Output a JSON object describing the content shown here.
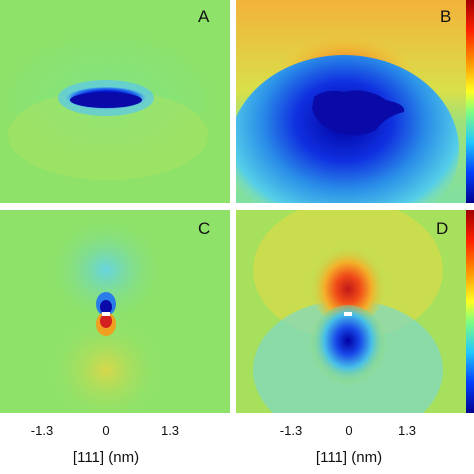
{
  "panels": [
    {
      "label": "A",
      "colors": {
        "background": "#8ee26a",
        "lobe": "#1010b8"
      }
    },
    {
      "label": "B",
      "colors": {
        "top": "#f2c53a",
        "lobe": "#1010b8",
        "lower": "#3fb6e8",
        "accent": "#f08a2a"
      }
    },
    {
      "label": "C",
      "colors": {
        "background": "#8ee26a",
        "negative": "#1010b8",
        "positive": "#d42020"
      }
    },
    {
      "label": "D",
      "colors": {
        "background": "#a6e05c",
        "negative": "#1010b8",
        "positive": "#c01818"
      }
    }
  ],
  "x_axis": {
    "tick_labels_left": [
      "-1.3",
      "0",
      "1.3"
    ],
    "tick_labels_right": [
      "-1.3",
      "0",
      "1.3"
    ],
    "title_left": "[111] (nm)",
    "title_right": "[111] (nm)"
  },
  "colormap": [
    "#a00000",
    "#ff2000",
    "#ff9000",
    "#ffff20",
    "#7fff7f",
    "#20c8ff",
    "#0040ff",
    "#00008f"
  ]
}
